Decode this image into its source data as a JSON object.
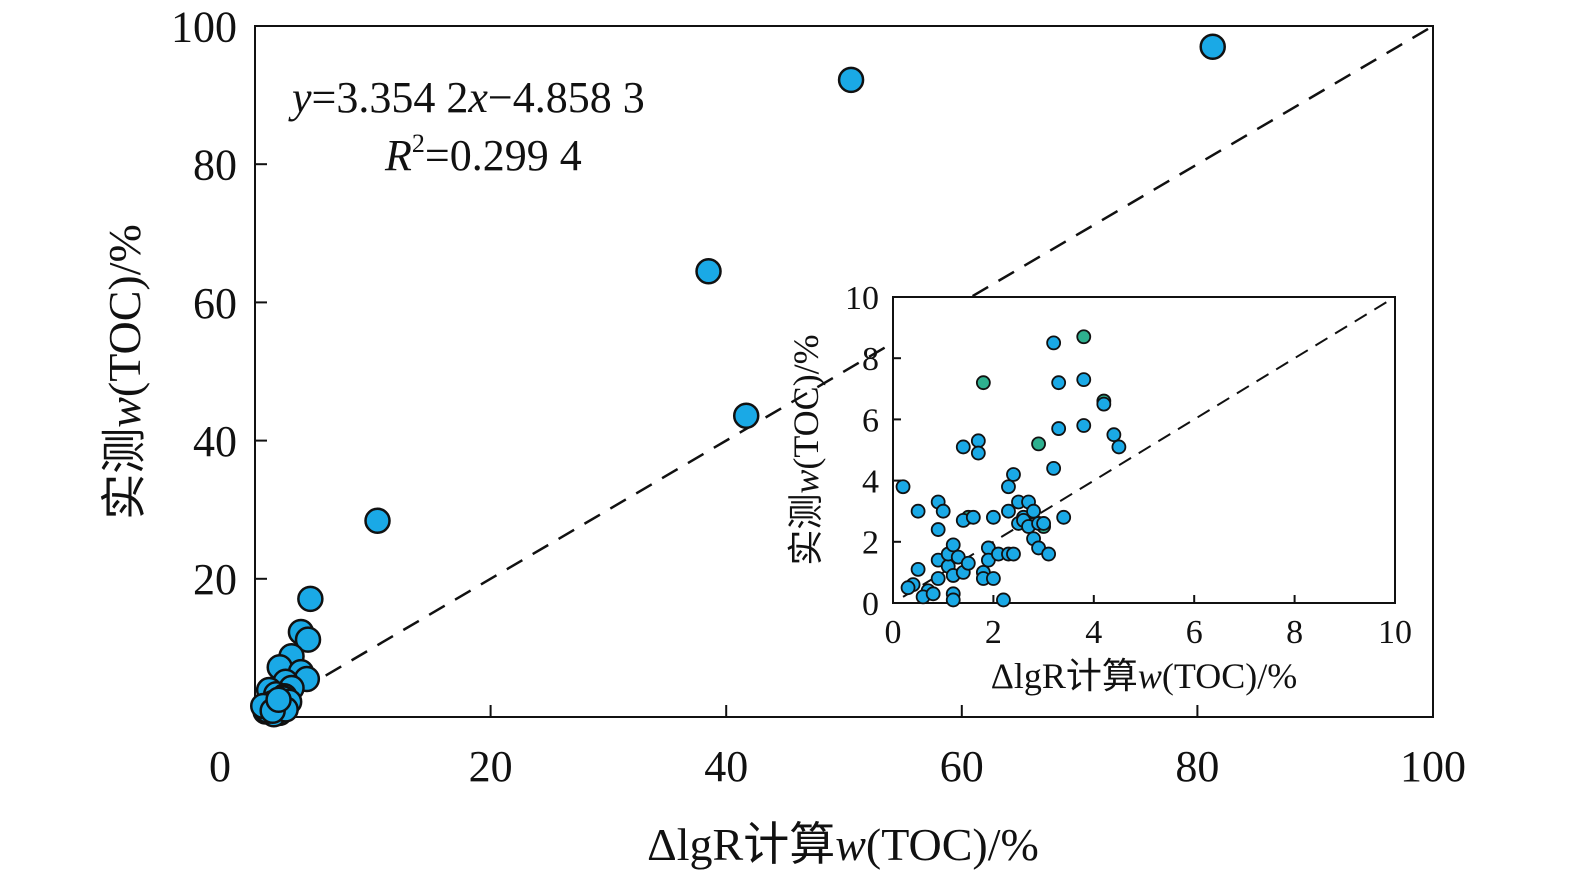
{
  "chart_data": [
    {
      "type": "scatter",
      "title": "",
      "xlabel": {
        "prefix": "ΔlgR计算",
        "var": "w",
        "suffix": "(TOC)/%"
      },
      "ylabel": {
        "prefix": "实测",
        "var": "w",
        "suffix": "(TOC)/%"
      },
      "xlim": [
        0,
        100
      ],
      "ylim": [
        0,
        100
      ],
      "x_ticks": [
        "0",
        "20",
        "40",
        "60",
        "80",
        "100"
      ],
      "y_ticks": [
        "20",
        "40",
        "60",
        "80",
        "100"
      ],
      "grid": false,
      "equation": {
        "y": "y",
        "eq1": "=3.354 2",
        "x": "x",
        "eq2": "−4.858 3"
      },
      "r2": {
        "R": "R",
        "sup": "2",
        "val": "=0.299 4"
      },
      "fit_line": {
        "slope": 1.0,
        "intercept": 0
      },
      "marker_color": "#1aa9e6",
      "points": [
        [
          81.3,
          97.0
        ],
        [
          50.6,
          92.2
        ],
        [
          38.5,
          64.5
        ],
        [
          41.7,
          43.6
        ],
        [
          10.4,
          28.4
        ],
        [
          4.7,
          17.1
        ],
        [
          3.9,
          12.3
        ],
        [
          4.5,
          11.2
        ],
        [
          3.1,
          8.8
        ],
        [
          2.1,
          7.2
        ],
        [
          3.9,
          6.5
        ],
        [
          4.4,
          5.5
        ],
        [
          2.6,
          5.1
        ],
        [
          1.2,
          3.9
        ],
        [
          3.1,
          4.2
        ],
        [
          1.8,
          3.3
        ],
        [
          2.5,
          3.0
        ],
        [
          2.4,
          2.7
        ],
        [
          2.9,
          2.2
        ],
        [
          1.5,
          2.0
        ],
        [
          1.9,
          1.6
        ],
        [
          1.3,
          1.3
        ],
        [
          0.9,
          0.8
        ],
        [
          2.1,
          0.6
        ],
        [
          1.6,
          0.4
        ],
        [
          1.1,
          0.9
        ],
        [
          2.6,
          1.1
        ],
        [
          0.7,
          1.6
        ],
        [
          1.5,
          0.9
        ],
        [
          2.0,
          2.5
        ]
      ]
    },
    {
      "type": "scatter",
      "title": "",
      "xlabel": {
        "prefix": "ΔlgR计算",
        "var": "w",
        "suffix": "(TOC)/%"
      },
      "ylabel": {
        "prefix": "实测",
        "var": "w",
        "suffix": "(TOC)/%"
      },
      "xlim": [
        0,
        10
      ],
      "ylim": [
        0,
        10
      ],
      "x_ticks": [
        "0",
        "2",
        "4",
        "6",
        "8",
        "10"
      ],
      "y_ticks": [
        "0",
        "2",
        "4",
        "6",
        "8",
        "10"
      ],
      "grid": false,
      "fit_line": {
        "slope": 1.0,
        "intercept": 0
      },
      "marker_color": "#1aa9e6",
      "marker_color_alt": "#2eb08f",
      "points": [
        [
          0.2,
          3.8
        ],
        [
          0.5,
          3.0
        ],
        [
          0.5,
          1.1
        ],
        [
          0.4,
          0.6
        ],
        [
          0.3,
          0.5
        ],
        [
          0.7,
          0.4
        ],
        [
          0.6,
          0.2
        ],
        [
          0.8,
          0.3
        ],
        [
          0.9,
          0.8
        ],
        [
          0.9,
          1.4
        ],
        [
          0.9,
          2.4
        ],
        [
          0.9,
          3.3
        ],
        [
          1.0,
          3.0
        ],
        [
          1.1,
          1.2
        ],
        [
          1.1,
          1.6
        ],
        [
          1.2,
          1.9
        ],
        [
          1.2,
          0.9
        ],
        [
          1.2,
          0.3
        ],
        [
          1.2,
          0.1
        ],
        [
          1.3,
          1.5
        ],
        [
          1.4,
          1.0
        ],
        [
          1.4,
          2.7
        ],
        [
          1.5,
          1.3
        ],
        [
          1.4,
          5.1
        ],
        [
          1.6,
          2.8
        ],
        [
          1.7,
          5.3
        ],
        [
          1.7,
          4.9
        ],
        [
          1.8,
          1.0
        ],
        [
          1.8,
          0.8
        ],
        [
          1.9,
          1.8
        ],
        [
          1.9,
          1.4
        ],
        [
          2.0,
          0.8
        ],
        [
          2.0,
          2.8
        ],
        [
          2.1,
          1.6
        ],
        [
          2.2,
          0.1
        ],
        [
          2.3,
          1.6
        ],
        [
          2.3,
          3.0
        ],
        [
          2.3,
          3.8
        ],
        [
          2.4,
          4.2
        ],
        [
          2.4,
          1.6
        ],
        [
          2.5,
          3.3
        ],
        [
          2.5,
          2.6
        ],
        [
          2.6,
          2.8
        ],
        [
          2.6,
          2.7
        ],
        [
          2.7,
          3.3
        ],
        [
          2.7,
          2.5
        ],
        [
          2.8,
          2.1
        ],
        [
          2.8,
          3.0
        ],
        [
          2.9,
          2.6
        ],
        [
          2.9,
          1.8
        ],
        [
          3.0,
          2.6
        ],
        [
          3.1,
          1.6
        ],
        [
          3.2,
          4.4
        ],
        [
          3.4,
          2.8
        ],
        [
          3.2,
          8.5
        ],
        [
          3.3,
          7.2
        ],
        [
          3.3,
          5.7
        ],
        [
          3.8,
          7.3
        ],
        [
          3.8,
          5.8
        ],
        [
          4.2,
          6.5
        ],
        [
          4.4,
          5.5
        ],
        [
          4.5,
          5.1
        ]
      ],
      "points_alt": [
        [
          3.8,
          8.7
        ],
        [
          1.8,
          7.2
        ],
        [
          2.9,
          5.2
        ],
        [
          1.5,
          2.8
        ],
        [
          3.0,
          2.5
        ],
        [
          4.2,
          6.6
        ]
      ]
    }
  ]
}
